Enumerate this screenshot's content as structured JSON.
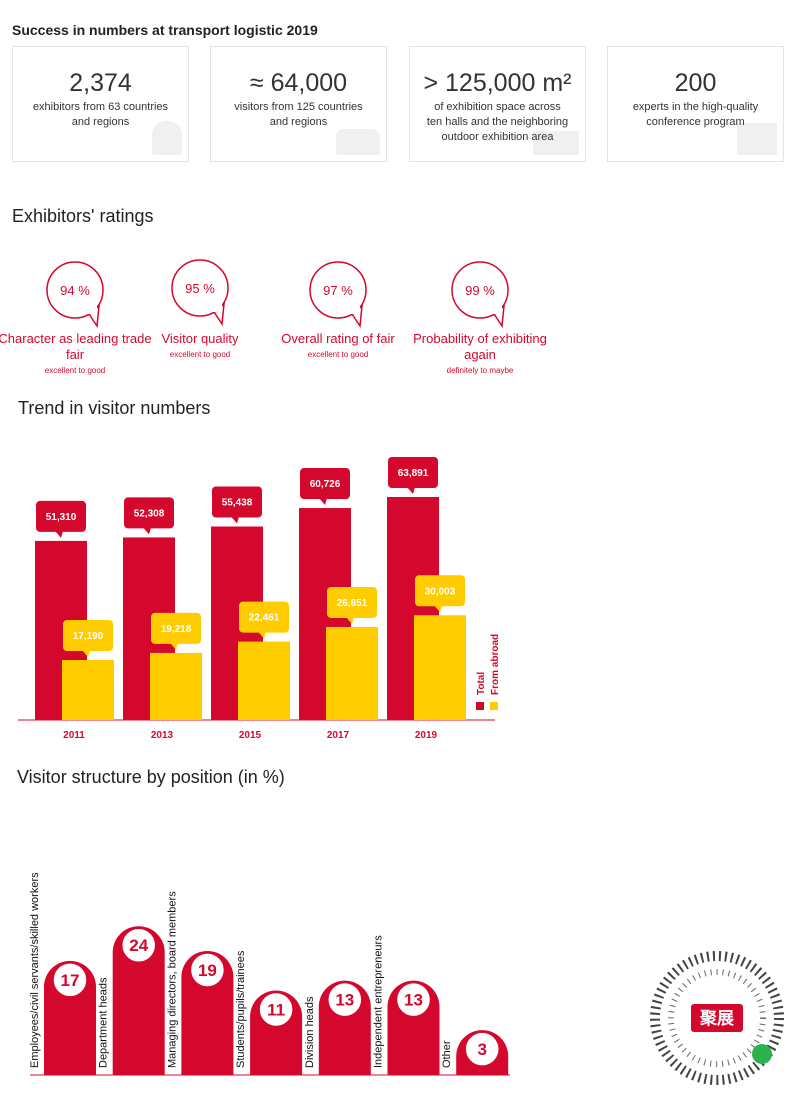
{
  "title": "Success in numbers at transport logistic 2019",
  "stats": [
    {
      "value": "2,374",
      "text": "exhibitors from 63 countries and regions"
    },
    {
      "value": "≈ 64,000",
      "text": "visitors from 125 countries and regions"
    },
    {
      "value": "> 125,000 m²",
      "text": "of exhibition space across ten halls and the neighboring outdoor exhibition area"
    },
    {
      "value": "200",
      "text": "experts in the high-quality conference program"
    }
  ],
  "ratings_title": "Exhibitors' ratings",
  "ratings": [
    {
      "value": "94 %",
      "label": "Character as leading trade fair",
      "note": "excellent to good"
    },
    {
      "value": "95 %",
      "label": "Visitor quality",
      "note": "excellent to good"
    },
    {
      "value": "97 %",
      "label": "Overall rating of fair",
      "note": "excellent to good"
    },
    {
      "value": "99 %",
      "label": "Probability of exhibiting again",
      "note": "definitely to maybe"
    }
  ],
  "chart_data": [
    {
      "type": "bar",
      "title": "Trend in visitor numbers",
      "categories": [
        "2011",
        "2013",
        "2015",
        "2017",
        "2019"
      ],
      "series": [
        {
          "name": "Total",
          "color": "#d4082d",
          "values": [
            51310,
            52308,
            55438,
            60726,
            63891
          ],
          "value_labels": [
            "51,310",
            "52,308",
            "55,438",
            "60,726",
            "63,891"
          ]
        },
        {
          "name": "From abroad",
          "color": "#ffcc00",
          "values": [
            17190,
            19218,
            22461,
            26651,
            30003
          ],
          "value_labels": [
            "17,190",
            "19,218",
            "22,461",
            "26,651",
            "30,003"
          ]
        }
      ],
      "legend": "right"
    },
    {
      "type": "bar",
      "title": "Visitor structure by position (in %)",
      "categories": [
        "Employees/civil servants/skilled workers",
        "Department heads",
        "Managing directors, board members",
        "Students/pupils/trainees",
        "Division heads",
        "Independent entrepreneurs",
        "Other"
      ],
      "values": [
        17,
        24,
        19,
        11,
        13,
        13,
        3
      ],
      "color": "#d4082d"
    }
  ],
  "qr_label": "聚展"
}
